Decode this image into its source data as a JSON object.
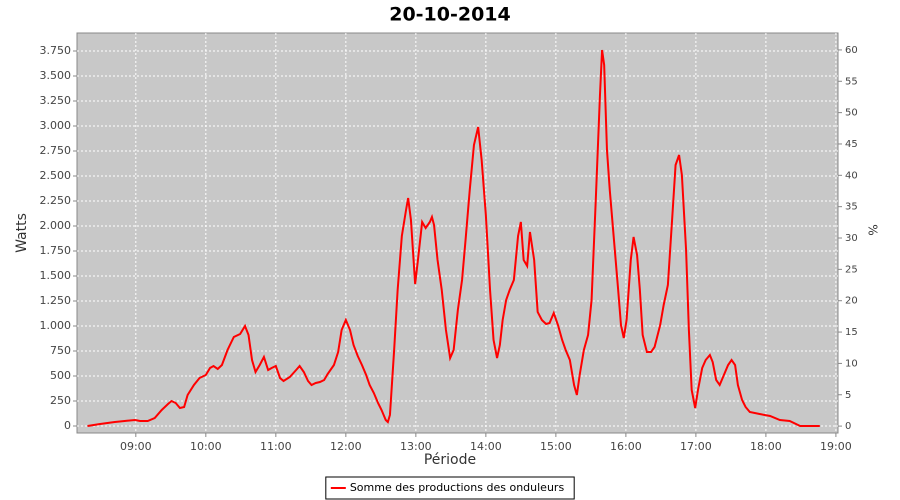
{
  "chart_data": {
    "type": "line",
    "title": "20-10-2014",
    "x_label": "Période",
    "y_label": "Watts",
    "y2_label": "%",
    "x": [
      8.31,
      8.49,
      8.7,
      8.84,
      8.99,
      9.06,
      9.17,
      9.27,
      9.37,
      9.46,
      9.51,
      9.57,
      9.63,
      9.69,
      9.74,
      9.83,
      9.91,
      10.0,
      10.06,
      10.11,
      10.17,
      10.23,
      10.31,
      10.4,
      10.49,
      10.56,
      10.61,
      10.66,
      10.71,
      10.77,
      10.83,
      10.89,
      10.94,
      11.0,
      11.06,
      11.11,
      11.2,
      11.29,
      11.34,
      11.4,
      11.46,
      11.51,
      11.57,
      11.63,
      11.69,
      11.74,
      11.83,
      11.89,
      11.94,
      12.0,
      12.06,
      12.11,
      12.17,
      12.23,
      12.29,
      12.34,
      12.4,
      12.46,
      12.51,
      12.57,
      12.6,
      12.63,
      12.69,
      12.74,
      12.8,
      12.86,
      12.89,
      12.93,
      12.99,
      13.03,
      13.09,
      13.14,
      13.2,
      13.23,
      13.26,
      13.31,
      13.37,
      13.43,
      13.49,
      13.54,
      13.6,
      13.66,
      13.71,
      13.77,
      13.83,
      13.89,
      13.94,
      14.0,
      14.06,
      14.11,
      14.16,
      14.2,
      14.24,
      14.29,
      14.34,
      14.4,
      14.46,
      14.5,
      14.54,
      14.59,
      14.63,
      14.69,
      14.74,
      14.8,
      14.86,
      14.91,
      14.97,
      15.03,
      15.09,
      15.14,
      15.2,
      15.26,
      15.3,
      15.34,
      15.4,
      15.46,
      15.51,
      15.57,
      15.63,
      15.66,
      15.69,
      15.73,
      15.77,
      15.83,
      15.89,
      15.93,
      15.97,
      16.01,
      16.07,
      16.11,
      16.16,
      16.2,
      16.24,
      16.3,
      16.36,
      16.41,
      16.49,
      16.54,
      16.6,
      16.66,
      16.71,
      16.76,
      16.8,
      16.86,
      16.9,
      16.94,
      16.99,
      17.03,
      17.09,
      17.14,
      17.2,
      17.24,
      17.29,
      17.34,
      17.4,
      17.46,
      17.51,
      17.56,
      17.6,
      17.66,
      17.71,
      17.77,
      17.91,
      18.06,
      18.2,
      18.34,
      18.49,
      18.63,
      18.77
    ],
    "series": [
      {
        "name": "Somme des productions des onduleurs",
        "color": "#ff0000",
        "values": [
          0,
          20,
          40,
          50,
          60,
          50,
          50,
          80,
          160,
          220,
          250,
          230,
          180,
          190,
          310,
          410,
          480,
          510,
          580,
          600,
          570,
          610,
          760,
          890,
          920,
          1000,
          910,
          660,
          540,
          610,
          690,
          560,
          580,
          600,
          480,
          450,
          490,
          560,
          600,
          540,
          450,
          410,
          430,
          440,
          460,
          520,
          610,
          740,
          960,
          1060,
          960,
          810,
          700,
          610,
          510,
          410,
          330,
          230,
          160,
          60,
          40,
          110,
          760,
          1360,
          1900,
          2160,
          2280,
          2060,
          1420,
          1660,
          2040,
          1980,
          2040,
          2090,
          2010,
          1660,
          1360,
          960,
          680,
          760,
          1160,
          1460,
          1860,
          2360,
          2810,
          2990,
          2660,
          2110,
          1360,
          860,
          680,
          810,
          1060,
          1260,
          1360,
          1460,
          1900,
          2040,
          1660,
          1600,
          1940,
          1660,
          1140,
          1060,
          1020,
          1030,
          1130,
          1010,
          860,
          760,
          660,
          410,
          310,
          510,
          760,
          910,
          1260,
          2260,
          3310,
          3760,
          3610,
          2760,
          2360,
          1860,
          1360,
          1010,
          880,
          1060,
          1660,
          1890,
          1710,
          1360,
          910,
          740,
          740,
          790,
          1010,
          1210,
          1410,
          2060,
          2610,
          2710,
          2510,
          1760,
          960,
          360,
          180,
          360,
          580,
          660,
          710,
          640,
          460,
          410,
          510,
          610,
          660,
          610,
          410,
          260,
          190,
          140,
          120,
          100,
          60,
          50,
          0,
          0,
          0
        ]
      }
    ],
    "xlim": [
      8.16,
      19.03
    ],
    "xticks": [
      {
        "value": 9,
        "label": "09:00"
      },
      {
        "value": 10,
        "label": "10:00"
      },
      {
        "value": 11,
        "label": "11:00"
      },
      {
        "value": 12,
        "label": "12:00"
      },
      {
        "value": 13,
        "label": "13:00"
      },
      {
        "value": 14,
        "label": "14:00"
      },
      {
        "value": 15,
        "label": "15:00"
      },
      {
        "value": 16,
        "label": "16:00"
      },
      {
        "value": 17,
        "label": "17:00"
      },
      {
        "value": 18,
        "label": "18:00"
      },
      {
        "value": 19,
        "label": "19:00"
      }
    ],
    "ylim": [
      -70,
      3930
    ],
    "yticks": [
      0,
      250,
      500,
      750,
      {
        "value": 1000,
        "label": "1.000"
      },
      {
        "value": 1250,
        "label": "1.250"
      },
      {
        "value": 1500,
        "label": "1.500"
      },
      {
        "value": 1750,
        "label": "1.750"
      },
      {
        "value": 2000,
        "label": "2.000"
      },
      {
        "value": 2250,
        "label": "2.250"
      },
      {
        "value": 2500,
        "label": "2.500"
      },
      {
        "value": 2750,
        "label": "2.750"
      },
      {
        "value": 3000,
        "label": "3.000"
      },
      {
        "value": 3250,
        "label": "3.250"
      },
      {
        "value": 3500,
        "label": "3.500"
      },
      {
        "value": 3750,
        "label": "3.750"
      }
    ],
    "y2lim": [
      -1.1,
      62.7
    ],
    "y2ticks": [
      0,
      5,
      10,
      15,
      20,
      25,
      30,
      35,
      40,
      45,
      50,
      55,
      60
    ],
    "grid": true,
    "legend": "bottom"
  }
}
